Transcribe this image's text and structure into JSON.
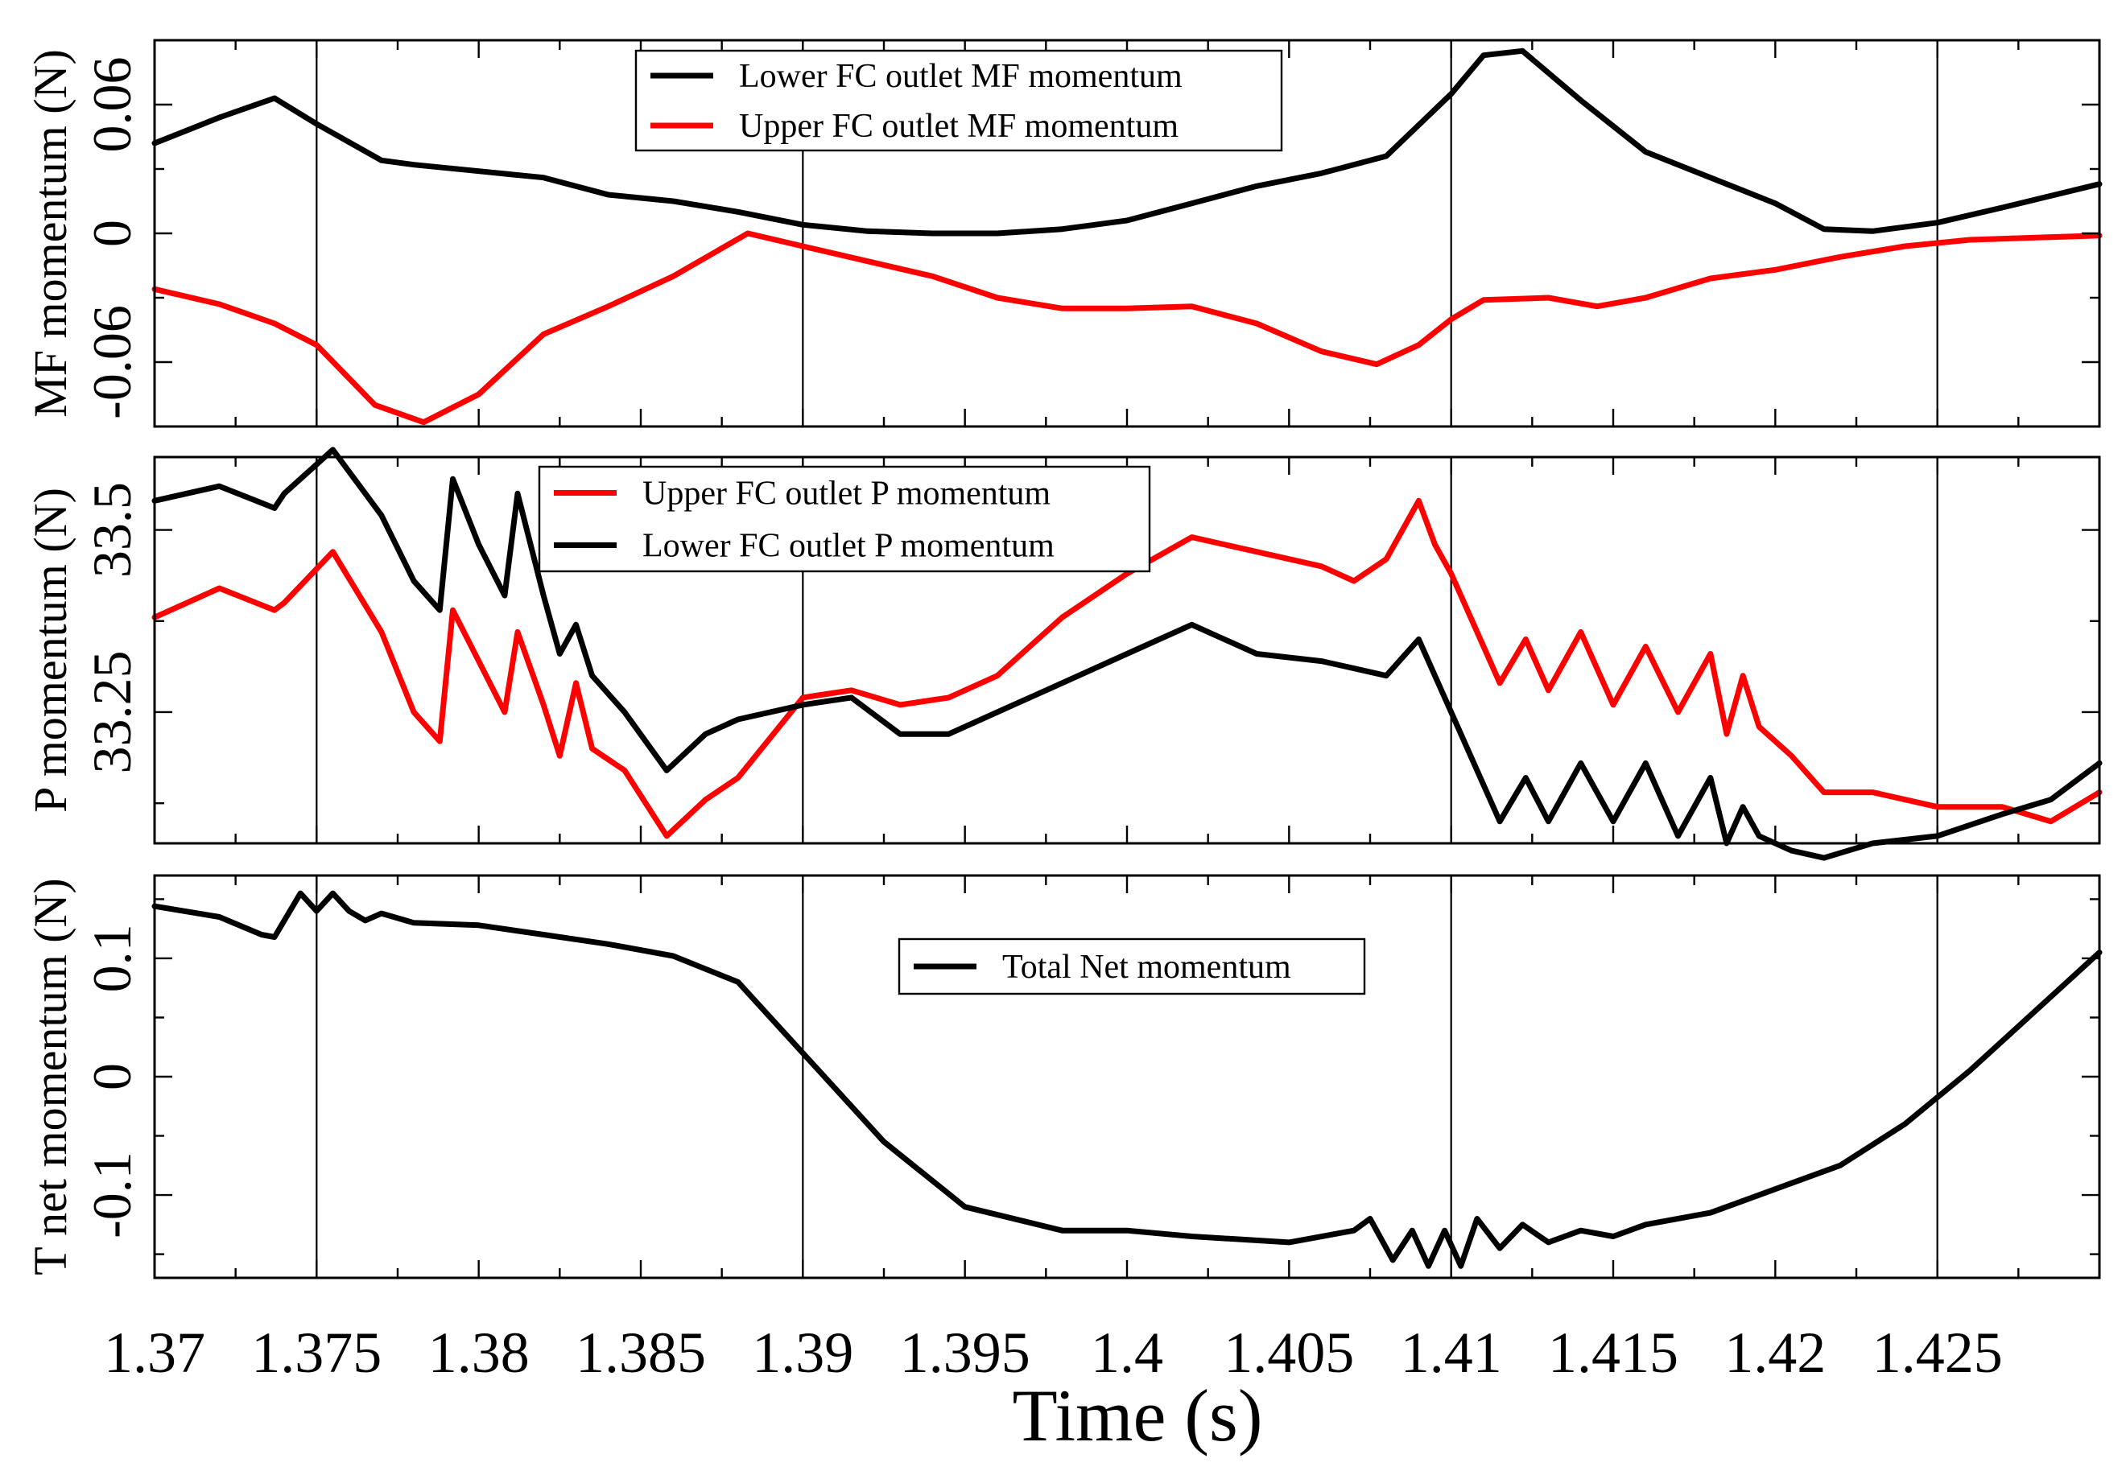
{
  "chart_data": {
    "type": "line",
    "xlabel": "Time (s)",
    "xlim": [
      1.37,
      1.43
    ],
    "xticks": [
      1.37,
      1.375,
      1.38,
      1.385,
      1.39,
      1.395,
      1.4,
      1.405,
      1.41,
      1.415,
      1.42,
      1.425
    ],
    "xtick_labels": [
      "1.37",
      "1.375",
      "1.38",
      "1.385",
      "1.39",
      "1.395",
      "1.4",
      "1.405",
      "1.41",
      "1.415",
      "1.42",
      "1.425"
    ],
    "grid_x": [
      1.375,
      1.39,
      1.41,
      1.425
    ],
    "colors": {
      "black": "#000000",
      "red": "#ff0000"
    },
    "panels": [
      {
        "ylabel": "MF momentum (N)",
        "ylim": [
          -0.09,
          0.09
        ],
        "yticks": [
          -0.06,
          0,
          0.06
        ],
        "ytick_labels": [
          "-0.06",
          "0",
          "0.06"
        ],
        "legend": "top-center",
        "series": [
          {
            "name": "Lower FC outlet MF momentum",
            "color": "#000000",
            "x": [
              1.37,
              1.372,
              1.3737,
              1.375,
              1.377,
              1.378,
              1.38,
              1.382,
              1.384,
              1.386,
              1.388,
              1.39,
              1.392,
              1.394,
              1.396,
              1.398,
              1.4,
              1.402,
              1.404,
              1.406,
              1.408,
              1.41,
              1.411,
              1.4122,
              1.414,
              1.416,
              1.418,
              1.42,
              1.4215,
              1.423,
              1.425,
              1.427,
              1.43
            ],
            "y": [
              0.042,
              0.054,
              0.063,
              0.051,
              0.034,
              0.032,
              0.029,
              0.026,
              0.018,
              0.015,
              0.01,
              0.004,
              0.001,
              0.0,
              0.0,
              0.002,
              0.006,
              0.014,
              0.022,
              0.028,
              0.036,
              0.065,
              0.083,
              0.085,
              0.062,
              0.038,
              0.026,
              0.014,
              0.002,
              0.001,
              0.005,
              0.012,
              0.023
            ]
          },
          {
            "name": "Upper FC outlet MF momentum",
            "color": "#ff0000",
            "x": [
              1.37,
              1.372,
              1.3737,
              1.375,
              1.3768,
              1.3783,
              1.38,
              1.382,
              1.384,
              1.386,
              1.3883,
              1.39,
              1.392,
              1.394,
              1.396,
              1.398,
              1.4,
              1.402,
              1.404,
              1.406,
              1.4077,
              1.409,
              1.41,
              1.411,
              1.413,
              1.4145,
              1.416,
              1.418,
              1.42,
              1.422,
              1.424,
              1.426,
              1.43
            ],
            "y": [
              -0.026,
              -0.033,
              -0.042,
              -0.052,
              -0.08,
              -0.088,
              -0.075,
              -0.047,
              -0.034,
              -0.02,
              0.0,
              -0.006,
              -0.013,
              -0.02,
              -0.03,
              -0.035,
              -0.035,
              -0.034,
              -0.042,
              -0.055,
              -0.061,
              -0.052,
              -0.04,
              -0.031,
              -0.03,
              -0.034,
              -0.03,
              -0.021,
              -0.017,
              -0.011,
              -0.006,
              -0.003,
              -0.001
            ]
          }
        ]
      },
      {
        "ylabel": "P momentum (N)",
        "ylim": [
          33.07,
          33.6
        ],
        "yticks": [
          33.25,
          33.5
        ],
        "ytick_labels": [
          "33.25",
          "33.5"
        ],
        "legend": "top-center",
        "series": [
          {
            "name": "Upper FC outlet P momentum",
            "color": "#ff0000",
            "x": [
              1.37,
              1.372,
              1.3737,
              1.374,
              1.3755,
              1.377,
              1.378,
              1.3788,
              1.3792,
              1.38,
              1.3808,
              1.3812,
              1.382,
              1.3825,
              1.383,
              1.3835,
              1.3845,
              1.3858,
              1.387,
              1.388,
              1.39,
              1.3915,
              1.393,
              1.3945,
              1.396,
              1.398,
              1.4,
              1.402,
              1.404,
              1.406,
              1.407,
              1.408,
              1.409,
              1.4095,
              1.41,
              1.4115,
              1.4123,
              1.413,
              1.414,
              1.415,
              1.416,
              1.417,
              1.418,
              1.4185,
              1.419,
              1.4195,
              1.4205,
              1.4215,
              1.423,
              1.425,
              1.427,
              1.4285,
              1.43
            ],
            "y": [
              33.38,
              33.42,
              33.39,
              33.4,
              33.47,
              33.36,
              33.25,
              33.21,
              33.39,
              33.32,
              33.25,
              33.36,
              33.26,
              33.19,
              33.29,
              33.2,
              33.17,
              33.08,
              33.13,
              33.16,
              33.27,
              33.28,
              33.26,
              33.27,
              33.3,
              33.38,
              33.44,
              33.49,
              33.47,
              33.45,
              33.43,
              33.46,
              33.54,
              33.48,
              33.44,
              33.29,
              33.35,
              33.28,
              33.36,
              33.26,
              33.34,
              33.25,
              33.33,
              33.22,
              33.3,
              33.23,
              33.19,
              33.14,
              33.14,
              33.12,
              33.12,
              33.1,
              33.14
            ]
          },
          {
            "name": "Lower FC outlet P momentum",
            "color": "#000000",
            "x": [
              1.37,
              1.372,
              1.3737,
              1.374,
              1.3755,
              1.377,
              1.378,
              1.3788,
              1.3792,
              1.38,
              1.3808,
              1.3812,
              1.382,
              1.3825,
              1.383,
              1.3835,
              1.3845,
              1.3858,
              1.387,
              1.388,
              1.39,
              1.3915,
              1.393,
              1.3945,
              1.396,
              1.398,
              1.4,
              1.402,
              1.404,
              1.406,
              1.407,
              1.408,
              1.409,
              1.4095,
              1.41,
              1.4115,
              1.4123,
              1.413,
              1.414,
              1.415,
              1.416,
              1.417,
              1.418,
              1.4185,
              1.419,
              1.4195,
              1.4205,
              1.4215,
              1.423,
              1.425,
              1.427,
              1.4285,
              1.43
            ],
            "y": [
              33.54,
              33.56,
              33.53,
              33.55,
              33.61,
              33.52,
              33.43,
              33.39,
              33.57,
              33.48,
              33.41,
              33.55,
              33.41,
              33.33,
              33.37,
              33.3,
              33.25,
              33.17,
              33.22,
              33.24,
              33.26,
              33.27,
              33.22,
              33.22,
              33.25,
              33.29,
              33.33,
              33.37,
              33.33,
              33.32,
              33.31,
              33.3,
              33.35,
              33.3,
              33.25,
              33.1,
              33.16,
              33.1,
              33.18,
              33.1,
              33.18,
              33.08,
              33.16,
              33.07,
              33.12,
              33.08,
              33.06,
              33.05,
              33.07,
              33.08,
              33.11,
              33.13,
              33.18
            ]
          }
        ]
      },
      {
        "ylabel": "T net momentum (N)",
        "ylim": [
          -0.17,
          0.17
        ],
        "yticks": [
          -0.1,
          0,
          0.1
        ],
        "ytick_labels": [
          "-0.1",
          "0",
          "0.1"
        ],
        "legend": "top-center",
        "series": [
          {
            "name": "Total Net momentum",
            "color": "#000000",
            "x": [
              1.37,
              1.372,
              1.3733,
              1.3737,
              1.3745,
              1.375,
              1.3755,
              1.376,
              1.3765,
              1.377,
              1.378,
              1.38,
              1.382,
              1.384,
              1.386,
              1.388,
              1.39,
              1.3925,
              1.395,
              1.398,
              1.4,
              1.402,
              1.405,
              1.407,
              1.4075,
              1.4082,
              1.4088,
              1.4093,
              1.4098,
              1.4103,
              1.4108,
              1.4115,
              1.4122,
              1.413,
              1.414,
              1.415,
              1.416,
              1.418,
              1.42,
              1.422,
              1.424,
              1.426,
              1.428,
              1.43
            ],
            "y": [
              0.144,
              0.135,
              0.12,
              0.118,
              0.155,
              0.14,
              0.155,
              0.14,
              0.132,
              0.138,
              0.13,
              0.128,
              0.12,
              0.112,
              0.102,
              0.08,
              0.02,
              -0.055,
              -0.11,
              -0.13,
              -0.13,
              -0.135,
              -0.14,
              -0.13,
              -0.12,
              -0.155,
              -0.13,
              -0.16,
              -0.13,
              -0.16,
              -0.12,
              -0.145,
              -0.125,
              -0.14,
              -0.13,
              -0.135,
              -0.125,
              -0.115,
              -0.095,
              -0.075,
              -0.04,
              0.005,
              0.055,
              0.105
            ]
          }
        ]
      }
    ]
  }
}
